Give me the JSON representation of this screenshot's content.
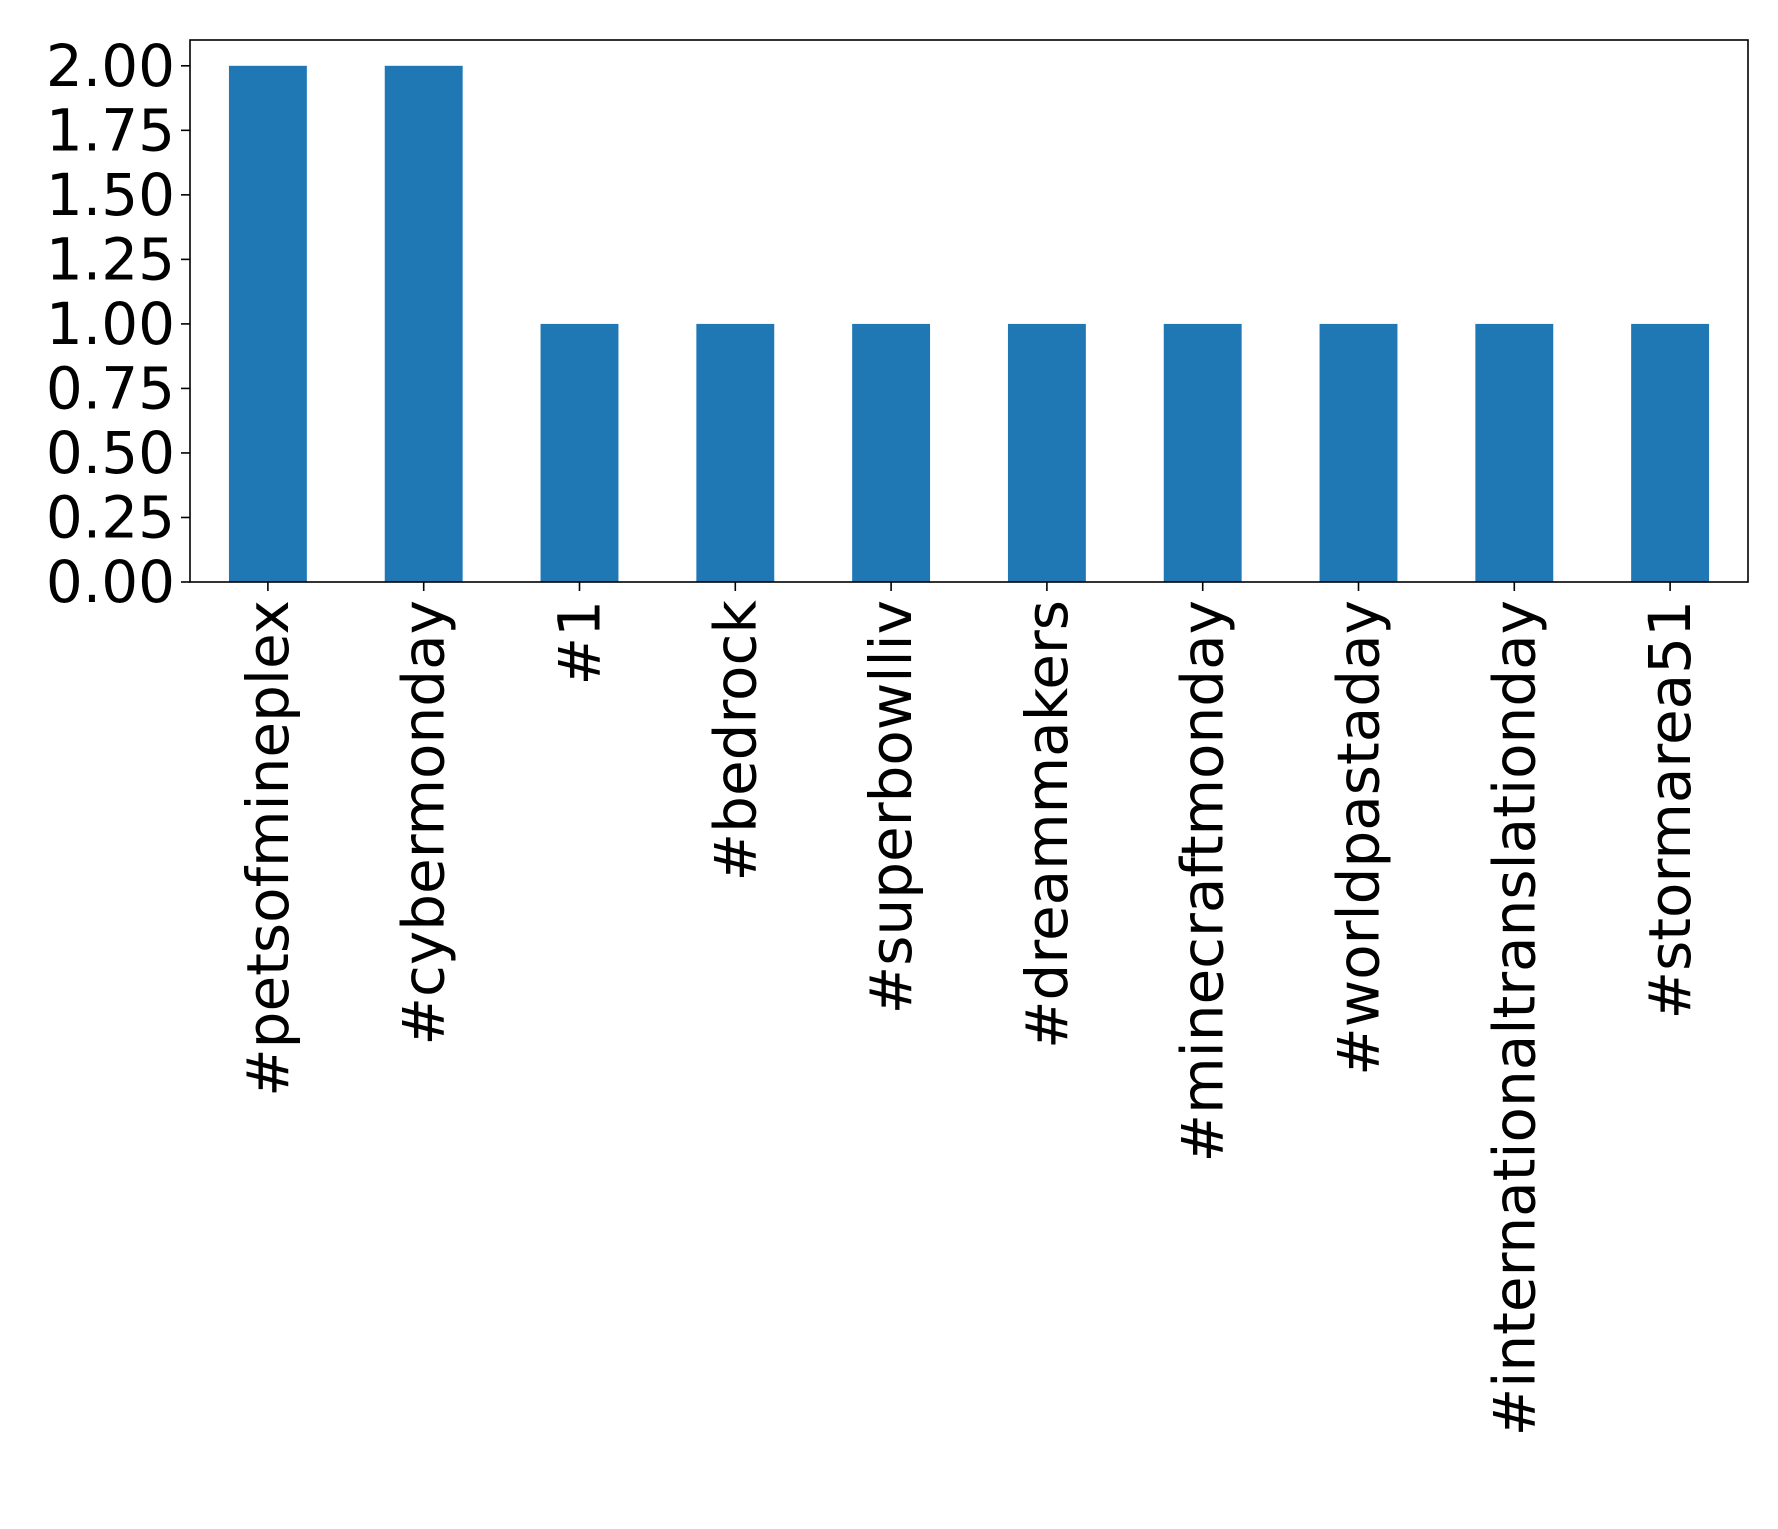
{
  "chart_data": {
    "type": "bar",
    "categories": [
      "#petsofmineplex",
      "#cybermonday",
      "#1",
      "#bedrock",
      "#superbowlliv",
      "#dreammakers",
      "#minecraftmonday",
      "#worldpastaday",
      "#internationaltranslationday",
      "#stormarea51"
    ],
    "values": [
      2,
      2,
      1,
      1,
      1,
      1,
      1,
      1,
      1,
      1
    ],
    "ylim": [
      0,
      2.1
    ],
    "yticks": [
      "0.00",
      "0.25",
      "0.50",
      "0.75",
      "1.00",
      "1.25",
      "1.50",
      "1.75",
      "2.00"
    ],
    "ytick_values": [
      0,
      0.25,
      0.5,
      0.75,
      1.0,
      1.25,
      1.5,
      1.75,
      2.0
    ],
    "title": "",
    "xlabel": "",
    "ylabel": "",
    "grid": false,
    "colors": {
      "bar": "#1f77b4",
      "axis": "#000000"
    }
  }
}
